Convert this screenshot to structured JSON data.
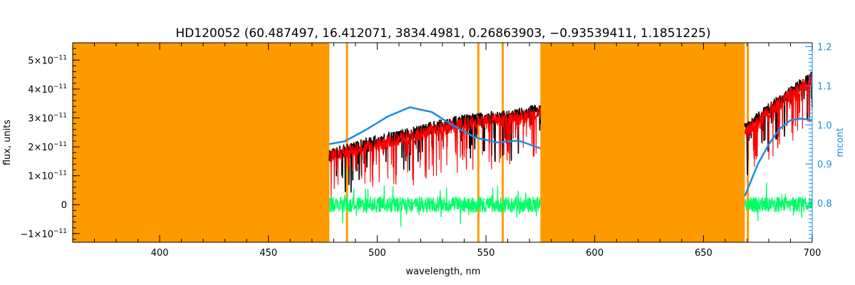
{
  "chart_data": {
    "type": "line",
    "title": "HD120052    (60.487497, 16.412071, 3834.4981, 0.26863903, −0.93539411, 1.1851225)",
    "xlabel": "wavelength, nm",
    "ylabel": "flux, units",
    "y2label": "mcont",
    "xlim": [
      360,
      700
    ],
    "ylim": [
      -1.3e-11,
      5.6e-11
    ],
    "y2lim": [
      0.7,
      1.21
    ],
    "x_ticks": [
      400,
      450,
      500,
      550,
      600,
      650,
      700
    ],
    "y_ticks": [
      {
        "value": -1e-11,
        "mant": "−1×10",
        "exp": "−11"
      },
      {
        "value": 0,
        "mant": "0",
        "exp": ""
      },
      {
        "value": 1e-11,
        "mant": "1×10",
        "exp": "−11"
      },
      {
        "value": 2e-11,
        "mant": "2×10",
        "exp": "−11"
      },
      {
        "value": 3e-11,
        "mant": "3×10",
        "exp": "−11"
      },
      {
        "value": 4e-11,
        "mant": "4×10",
        "exp": "−11"
      },
      {
        "value": 5e-11,
        "mant": "5×10",
        "exp": "−11"
      }
    ],
    "y2_ticks": [
      0.8,
      0.9,
      1.0,
      1.1,
      1.2
    ],
    "y2_tick_labels": [
      "0.8",
      "0.9",
      "1.0",
      "1.1",
      "1.2"
    ],
    "masked_regions": [
      [
        360,
        478
      ],
      [
        575,
        669
      ]
    ],
    "masked_lines": [
      486.1,
      546.5,
      557.7,
      670.4
    ],
    "segments": [
      [
        478,
        575
      ],
      [
        669,
        700
      ]
    ],
    "series": [
      {
        "role": "observed",
        "color": "#000000",
        "points": [
          [
            478,
            1.7e-11
          ],
          [
            490,
            2e-11
          ],
          [
            500,
            2.2e-11
          ],
          [
            510,
            2.35e-11
          ],
          [
            520,
            2.55e-11
          ],
          [
            530,
            2.75e-11
          ],
          [
            540,
            2.9e-11
          ],
          [
            550,
            3e-11
          ],
          [
            560,
            3.05e-11
          ],
          [
            570,
            3.2e-11
          ],
          [
            575,
            3.3e-11
          ],
          [
            669,
            2.6e-11
          ],
          [
            680,
            3.3e-11
          ],
          [
            690,
            3.9e-11
          ],
          [
            700,
            4.4e-11
          ]
        ]
      },
      {
        "role": "model",
        "color": "#ff0000",
        "points": [
          [
            478,
            1.65e-11
          ],
          [
            490,
            1.9e-11
          ],
          [
            500,
            2.1e-11
          ],
          [
            510,
            2.25e-11
          ],
          [
            520,
            2.45e-11
          ],
          [
            530,
            2.65e-11
          ],
          [
            540,
            2.8e-11
          ],
          [
            550,
            2.9e-11
          ],
          [
            560,
            2.95e-11
          ],
          [
            570,
            3.1e-11
          ],
          [
            575,
            3.2e-11
          ],
          [
            669,
            2.5e-11
          ],
          [
            680,
            3.2e-11
          ],
          [
            690,
            3.8e-11
          ],
          [
            700,
            4.3e-11
          ]
        ]
      },
      {
        "role": "residual",
        "color": "#00ff66",
        "points": [
          [
            478,
            0
          ],
          [
            575,
            0
          ],
          [
            669,
            0
          ],
          [
            700,
            0
          ]
        ]
      },
      {
        "role": "continuum",
        "axis": "right",
        "color": "#1a8ce6",
        "points": [
          [
            478,
            0.951
          ],
          [
            485,
            0.958
          ],
          [
            495,
            0.988
          ],
          [
            505,
            1.022
          ],
          [
            515,
            1.045
          ],
          [
            525,
            1.033
          ],
          [
            535,
            0.998
          ],
          [
            545,
            0.968
          ],
          [
            555,
            0.955
          ],
          [
            565,
            0.96
          ],
          [
            575,
            0.94
          ],
          [
            669,
            0.818
          ],
          [
            675,
            0.9
          ],
          [
            680,
            0.95
          ],
          [
            685,
            0.99
          ],
          [
            690,
            1.012
          ],
          [
            695,
            1.016
          ],
          [
            700,
            1.012
          ]
        ]
      }
    ],
    "colors": {
      "mask": "#ff9900",
      "axis": "#000000",
      "right_axis": "#1a8ce6"
    }
  }
}
